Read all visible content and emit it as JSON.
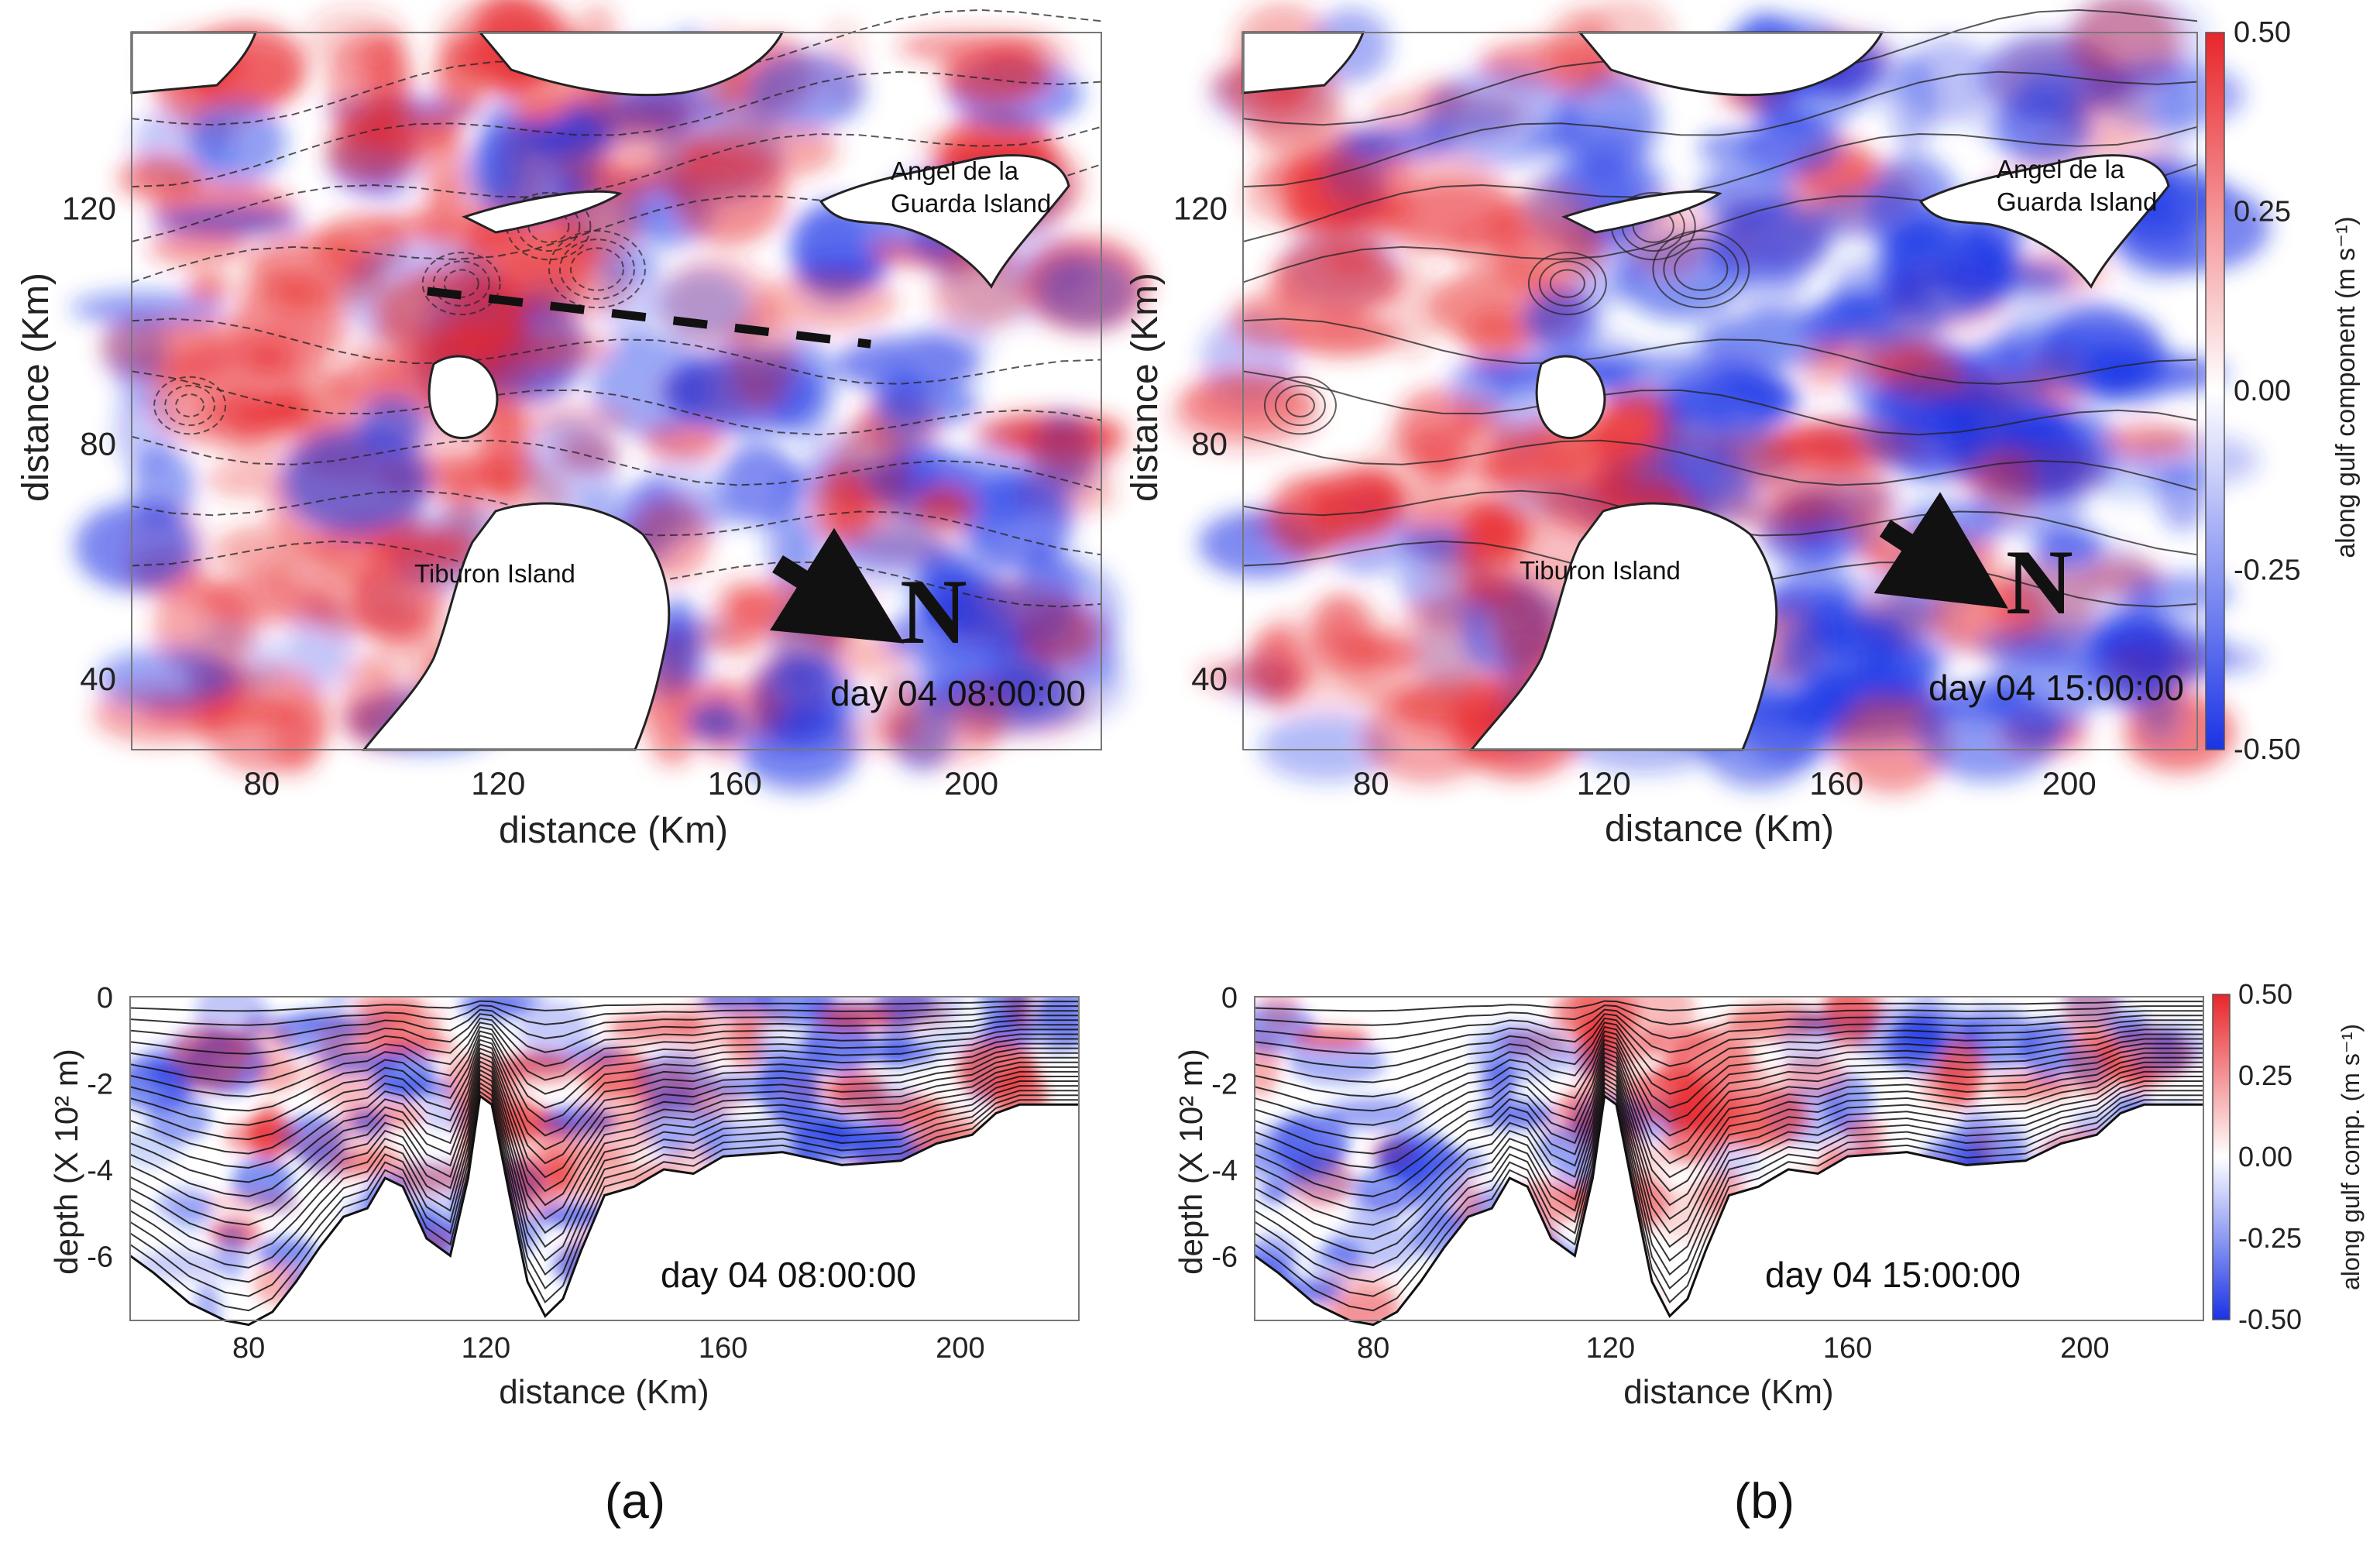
{
  "colors": {
    "pos": "#e8262b",
    "neg": "#1a33e6",
    "mid": "#ffffff",
    "contour": "#222222"
  },
  "figure": {
    "panel_labels": [
      "(a)",
      "(b)"
    ],
    "north_label": "N",
    "islands": {
      "angel": [
        "Angel de la",
        "Guarda Island"
      ],
      "tiburon": "Tiburon Island"
    }
  },
  "chart_data": [
    {
      "type": "heatmap",
      "id": "map_a",
      "title": "day 04 08:00:00",
      "xlabel": "distance (Km)",
      "ylabel": "distance (Km)",
      "xlim": [
        58,
        222
      ],
      "ylim": [
        28,
        150
      ],
      "xticks": [
        80,
        120,
        160,
        200
      ],
      "yticks": [
        40,
        80,
        120
      ],
      "annotations": [
        "Angel de la Guarda Island",
        "Tiburon Island",
        "N",
        "day 04 08:00:00"
      ],
      "transect": {
        "x": [
          108,
          183
        ],
        "y": [
          106,
          97
        ]
      }
    },
    {
      "type": "heatmap",
      "id": "map_b",
      "title": "day 04 15:00:00",
      "xlabel": "distance (Km)",
      "ylabel": "distance (Km)",
      "xlim": [
        58,
        222
      ],
      "ylim": [
        28,
        150
      ],
      "xticks": [
        80,
        120,
        160,
        200
      ],
      "yticks": [
        40,
        80,
        120
      ],
      "annotations": [
        "Angel de la Guarda Island",
        "Tiburon Island",
        "N",
        "day 04 15:00:00"
      ],
      "colorbar": {
        "label": "along gulf component (m s⁻¹)",
        "ticks": [
          "0.50",
          "0.25",
          "0.00",
          "-0.25",
          "-0.50"
        ],
        "range": [
          -0.5,
          0.5
        ]
      }
    },
    {
      "type": "heatmap",
      "id": "sec_a",
      "title": "day 04 08:00:00",
      "xlabel": "distance (Km)",
      "ylabel": "depth (X 10² m)",
      "xlim": [
        60,
        220
      ],
      "ylim": [
        -7.5,
        0
      ],
      "xticks": [
        80,
        120,
        160,
        200
      ],
      "yticks": [
        0,
        -2,
        -4,
        -6
      ],
      "bathymetry": {
        "x": [
          60,
          64,
          70,
          76,
          80,
          84,
          88,
          92,
          96,
          100,
          103,
          106,
          110,
          114,
          117,
          119,
          121,
          124,
          127,
          130,
          133,
          136,
          140,
          145,
          150,
          155,
          160,
          170,
          180,
          190,
          196,
          202,
          206,
          210,
          215,
          220
        ],
        "depth": [
          -6.0,
          -6.4,
          -7.1,
          -7.5,
          -7.6,
          -7.3,
          -6.6,
          -5.8,
          -5.1,
          -4.9,
          -4.2,
          -4.4,
          -5.6,
          -6.0,
          -4.2,
          -2.3,
          -2.5,
          -4.6,
          -6.6,
          -7.4,
          -7.0,
          -5.9,
          -4.6,
          -4.4,
          -4.0,
          -4.1,
          -3.7,
          -3.6,
          -3.9,
          -3.8,
          -3.4,
          -3.2,
          -2.7,
          -2.5,
          -2.5,
          -2.5
        ]
      }
    },
    {
      "type": "heatmap",
      "id": "sec_b",
      "title": "day 04 15:00:00",
      "xlabel": "distance (Km)",
      "ylabel": "depth (X 10² m)",
      "xlim": [
        60,
        220
      ],
      "ylim": [
        -7.5,
        0
      ],
      "xticks": [
        80,
        120,
        160,
        200
      ],
      "yticks": [
        0,
        -2,
        -4,
        -6
      ],
      "bathymetry": {
        "x": [
          60,
          64,
          70,
          76,
          80,
          84,
          88,
          92,
          96,
          100,
          103,
          106,
          110,
          114,
          117,
          119,
          121,
          124,
          127,
          130,
          133,
          136,
          140,
          145,
          150,
          155,
          160,
          170,
          180,
          190,
          196,
          202,
          206,
          210,
          215,
          220
        ],
        "depth": [
          -6.0,
          -6.4,
          -7.1,
          -7.5,
          -7.6,
          -7.3,
          -6.6,
          -5.8,
          -5.1,
          -4.9,
          -4.2,
          -4.4,
          -5.6,
          -6.0,
          -4.2,
          -2.3,
          -2.5,
          -4.6,
          -6.6,
          -7.4,
          -7.0,
          -5.9,
          -4.6,
          -4.4,
          -4.0,
          -4.1,
          -3.7,
          -3.6,
          -3.9,
          -3.8,
          -3.4,
          -3.2,
          -2.7,
          -2.5,
          -2.5,
          -2.5
        ]
      },
      "colorbar": {
        "label": "along gulf comp. (m s⁻¹)",
        "ticks": [
          "0.50",
          "0.25",
          "0.00",
          "-0.25",
          "-0.50"
        ],
        "range": [
          -0.5,
          0.5
        ]
      }
    }
  ]
}
